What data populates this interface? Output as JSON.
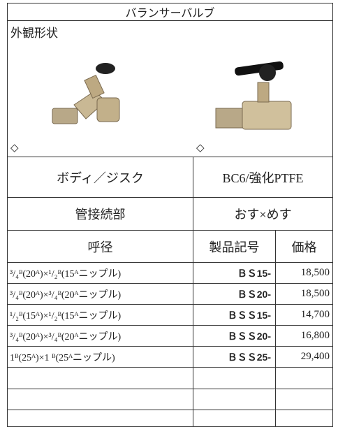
{
  "header": {
    "title": "バランサーバルブ"
  },
  "appearance": {
    "label": "外観形状",
    "markers": [
      "◇",
      "◇"
    ]
  },
  "specs": [
    [
      "ボディ／ジスク",
      "BC6/強化PTFE"
    ],
    [
      "管接続部",
      "おす×めす"
    ]
  ],
  "table": {
    "header": [
      "呼径",
      "製品記号",
      "価格"
    ],
    "rows": [
      [
        "³/₄ᴮ(20ᴬ)×¹/₂ᴮ(15ᴬニップル)",
        "ＢＳ15-",
        "18,500"
      ],
      [
        "³/₄ᴮ(20ᴬ)×³/₄ᴮ(20ᴬニップル)",
        "ＢＳ20-",
        "18,500"
      ],
      [
        "¹/₂ᴮ(15ᴬ)×¹/₂ᴮ(15ᴬニップル)",
        "ＢＳＳ15-",
        "14,700"
      ],
      [
        "³/₄ᴮ(20ᴬ)×³/₄ᴮ(20ᴬニップル)",
        "ＢＳＳ20-",
        "16,800"
      ],
      [
        "1ᴮ(25ᴬ)×1 ᴮ(25ᴬニップル)",
        "ＢＳＳ25-",
        "29,400"
      ]
    ]
  }
}
